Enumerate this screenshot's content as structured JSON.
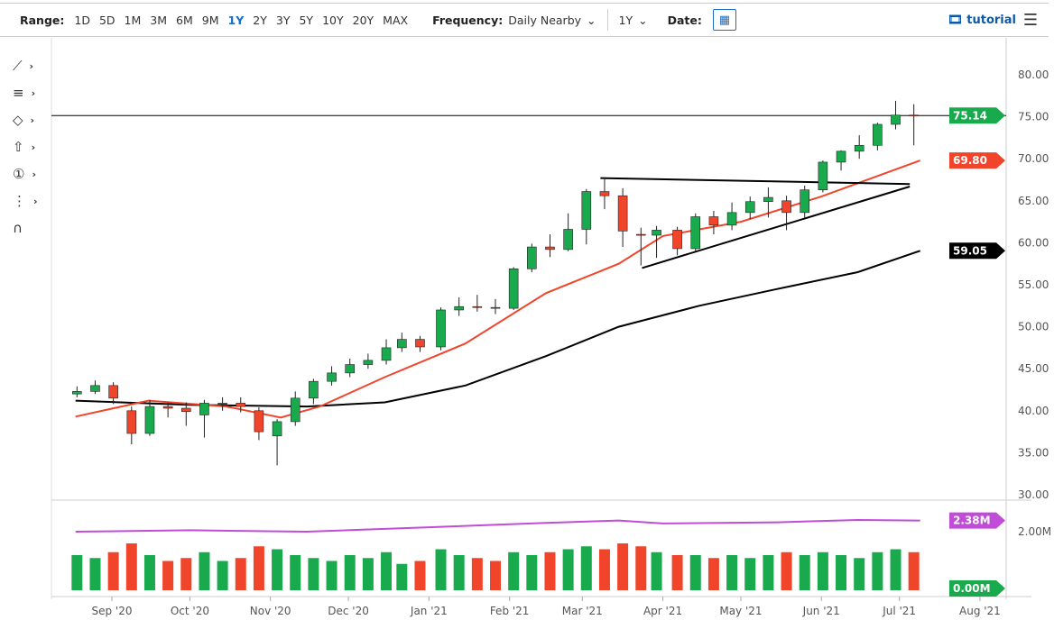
{
  "toolbar": {
    "range_label": "Range:",
    "ranges": [
      "1D",
      "5D",
      "1M",
      "3M",
      "6M",
      "9M",
      "1Y",
      "2Y",
      "3Y",
      "5Y",
      "10Y",
      "20Y",
      "MAX"
    ],
    "active_range": "1Y",
    "frequency_label": "Frequency:",
    "frequency_value": "Daily Nearby",
    "period_value": "1Y",
    "date_label": "Date:",
    "tutorial_label": "tutorial"
  },
  "tools": [
    {
      "icon": "line-icon"
    },
    {
      "icon": "fibonacci-icon"
    },
    {
      "icon": "shape-icon"
    },
    {
      "icon": "arrow-up-icon"
    },
    {
      "icon": "number-marker-icon",
      "glyph": "1"
    },
    {
      "icon": "pattern-icon"
    },
    {
      "icon": "magnet-icon"
    }
  ],
  "colors": {
    "up": "#1aaa4e",
    "down": "#f0452b",
    "sma50": "#f0452b",
    "sma200": "#000000",
    "volume_avg": "#c04cd8",
    "last": "#1aaa4e"
  },
  "chart_data": {
    "type": "candlestick",
    "ylim": [
      30,
      80
    ],
    "yticks": [
      "80.00",
      "75.00",
      "70.00",
      "65.00",
      "60.00",
      "55.00",
      "50.00",
      "45.00",
      "40.00",
      "35.00",
      "30.00"
    ],
    "xticks": [
      {
        "date": "2020-09-01",
        "label": "Sep '20"
      },
      {
        "date": "2020-10-01",
        "label": "Oct '20"
      },
      {
        "date": "2020-11-01",
        "label": "Nov '20"
      },
      {
        "date": "2020-12-01",
        "label": "Dec '20"
      },
      {
        "date": "2021-01-01",
        "label": "Jan '21"
      },
      {
        "date": "2021-02-01",
        "label": "Feb '21"
      },
      {
        "date": "2021-03-01",
        "label": "Mar '21"
      },
      {
        "date": "2021-04-01",
        "label": "Apr '21"
      },
      {
        "date": "2021-05-01",
        "label": "May '21"
      },
      {
        "date": "2021-06-01",
        "label": "Jun '21"
      },
      {
        "date": "2021-07-01",
        "label": "Jul '21"
      },
      {
        "date": "2021-08-01",
        "label": "Aug '21"
      }
    ],
    "ohlc": [
      [
        "2020-08-21",
        42.0,
        42.9,
        41.6,
        42.3
      ],
      [
        "2020-08-28",
        42.3,
        43.6,
        42.0,
        43.0
      ],
      [
        "2020-09-04",
        43.0,
        43.4,
        40.8,
        41.5
      ],
      [
        "2020-09-11",
        40.0,
        40.5,
        36.0,
        37.3
      ],
      [
        "2020-09-18",
        37.3,
        41.3,
        37.0,
        40.5
      ],
      [
        "2020-09-25",
        40.5,
        41.0,
        39.2,
        40.3
      ],
      [
        "2020-10-02",
        40.3,
        41.0,
        38.2,
        39.9
      ],
      [
        "2020-10-09",
        39.5,
        41.3,
        36.8,
        40.9
      ],
      [
        "2020-10-16",
        40.9,
        41.6,
        40.0,
        40.9
      ],
      [
        "2020-10-23",
        40.9,
        41.6,
        39.8,
        40.5
      ],
      [
        "2020-10-30",
        40.0,
        40.4,
        36.5,
        37.5
      ],
      [
        "2020-11-06",
        37.0,
        39.0,
        33.5,
        38.7
      ],
      [
        "2020-11-13",
        38.7,
        42.3,
        38.2,
        41.5
      ],
      [
        "2020-11-20",
        41.5,
        43.8,
        40.8,
        43.5
      ],
      [
        "2020-11-27",
        43.5,
        45.3,
        43.0,
        44.5
      ],
      [
        "2020-12-04",
        44.5,
        46.2,
        44.0,
        45.5
      ],
      [
        "2020-12-11",
        45.5,
        46.8,
        45.0,
        46.0
      ],
      [
        "2020-12-18",
        46.0,
        48.5,
        45.5,
        47.5
      ],
      [
        "2020-12-24",
        47.5,
        49.3,
        47.0,
        48.5
      ],
      [
        "2020-12-31",
        48.5,
        48.9,
        47.0,
        47.6
      ],
      [
        "2021-01-08",
        47.6,
        52.3,
        47.2,
        52.0
      ],
      [
        "2021-01-15",
        52.0,
        53.5,
        51.3,
        52.4
      ],
      [
        "2021-01-22",
        52.4,
        53.8,
        51.8,
        52.3
      ],
      [
        "2021-01-29",
        52.3,
        53.3,
        51.5,
        52.2
      ],
      [
        "2021-02-05",
        52.2,
        57.1,
        52.0,
        56.9
      ],
      [
        "2021-02-12",
        56.9,
        59.9,
        56.5,
        59.5
      ],
      [
        "2021-02-19",
        59.5,
        61.0,
        58.3,
        59.2
      ],
      [
        "2021-02-26",
        59.2,
        63.5,
        59.0,
        61.6
      ],
      [
        "2021-03-05",
        61.6,
        66.4,
        59.8,
        66.1
      ],
      [
        "2021-03-12",
        66.1,
        67.8,
        64.0,
        65.6
      ],
      [
        "2021-03-19",
        65.6,
        66.5,
        59.5,
        61.4
      ],
      [
        "2021-03-26",
        61.0,
        61.8,
        57.3,
        60.9
      ],
      [
        "2021-04-01",
        60.9,
        62.0,
        58.2,
        61.5
      ],
      [
        "2021-04-09",
        61.5,
        61.9,
        58.5,
        59.3
      ],
      [
        "2021-04-16",
        59.3,
        63.5,
        59.0,
        63.1
      ],
      [
        "2021-04-23",
        63.1,
        63.8,
        61.0,
        62.1
      ],
      [
        "2021-04-30",
        62.1,
        64.8,
        61.5,
        63.6
      ],
      [
        "2021-05-07",
        63.6,
        65.5,
        62.8,
        64.9
      ],
      [
        "2021-05-14",
        64.9,
        66.6,
        63.0,
        65.4
      ],
      [
        "2021-05-21",
        65.0,
        65.6,
        61.5,
        63.6
      ],
      [
        "2021-05-28",
        63.6,
        66.8,
        63.0,
        66.3
      ],
      [
        "2021-06-04",
        66.3,
        69.8,
        66.0,
        69.6
      ],
      [
        "2021-06-11",
        69.6,
        71.0,
        68.6,
        70.9
      ],
      [
        "2021-06-18",
        70.9,
        72.8,
        70.0,
        71.6
      ],
      [
        "2021-06-25",
        71.6,
        74.3,
        71.0,
        74.1
      ],
      [
        "2021-07-02",
        74.1,
        76.9,
        73.5,
        75.2
      ],
      [
        "2021-07-09",
        75.2,
        76.5,
        71.6,
        75.14
      ]
    ],
    "volume": [
      1.2,
      1.1,
      1.3,
      1.6,
      1.2,
      1.0,
      1.1,
      1.3,
      1.0,
      1.1,
      1.5,
      1.4,
      1.2,
      1.1,
      1.0,
      1.2,
      1.1,
      1.3,
      0.9,
      1.0,
      1.4,
      1.2,
      1.1,
      1.0,
      1.3,
      1.2,
      1.3,
      1.4,
      1.5,
      1.4,
      1.6,
      1.5,
      1.3,
      1.2,
      1.2,
      1.1,
      1.2,
      1.1,
      1.2,
      1.3,
      1.2,
      1.3,
      1.2,
      1.1,
      1.3,
      1.4,
      1.3
    ],
    "volume_avg": [
      [
        "2020-08-18",
        2.0
      ],
      [
        "2020-10-01",
        2.05
      ],
      [
        "2020-11-15",
        2.0
      ],
      [
        "2021-01-01",
        2.15
      ],
      [
        "2021-02-15",
        2.3
      ],
      [
        "2021-03-15",
        2.38
      ],
      [
        "2021-04-01",
        2.28
      ],
      [
        "2021-05-15",
        2.32
      ],
      [
        "2021-06-15",
        2.4
      ],
      [
        "2021-07-09",
        2.38
      ]
    ],
    "volume_ticks": [
      "2.00M"
    ],
    "sma50": [
      [
        "2020-08-18",
        39.3
      ],
      [
        "2020-09-15",
        41.2
      ],
      [
        "2020-10-15",
        40.5
      ],
      [
        "2020-11-05",
        39.2
      ],
      [
        "2020-11-20",
        40.5
      ],
      [
        "2020-12-15",
        44.0
      ],
      [
        "2021-01-15",
        48.0
      ],
      [
        "2021-02-15",
        54.0
      ],
      [
        "2021-03-15",
        57.5
      ],
      [
        "2021-04-01",
        60.8
      ],
      [
        "2021-05-01",
        62.5
      ],
      [
        "2021-06-01",
        65.5
      ],
      [
        "2021-07-09",
        69.8
      ]
    ],
    "sma200": [
      [
        "2020-08-18",
        41.2
      ],
      [
        "2020-10-01",
        40.7
      ],
      [
        "2020-11-15",
        40.5
      ],
      [
        "2020-12-15",
        41.0
      ],
      [
        "2021-01-15",
        43.0
      ],
      [
        "2021-02-15",
        46.5
      ],
      [
        "2021-03-15",
        50.0
      ],
      [
        "2021-04-15",
        52.5
      ],
      [
        "2021-05-15",
        54.5
      ],
      [
        "2021-06-15",
        56.5
      ],
      [
        "2021-07-09",
        59.05
      ]
    ],
    "trendlines": [
      [
        [
          "2021-03-08",
          67.7
        ],
        [
          "2021-07-05",
          67.0
        ]
      ],
      [
        [
          "2021-03-24",
          57.0
        ],
        [
          "2021-07-05",
          66.7
        ]
      ]
    ],
    "last_price_line": 75.14,
    "badges": {
      "last": "75.14",
      "sma50": "69.80",
      "sma200": "59.05",
      "volume_avg": "2.38M",
      "volume_zero": "0.00M"
    }
  }
}
